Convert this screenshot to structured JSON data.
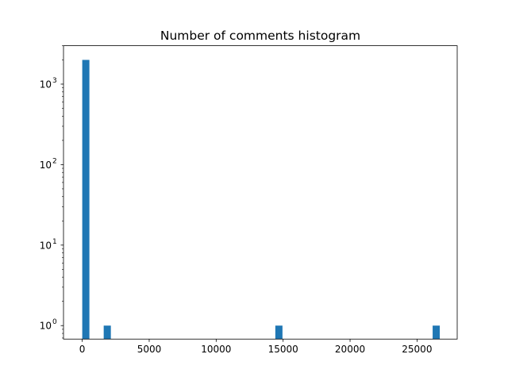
{
  "chart_data": {
    "type": "bar",
    "title": "Number of comments histogram",
    "xlabel": "",
    "ylabel": "",
    "x_scale": "linear",
    "y_scale": "log",
    "xlim": [
      -1400,
      28000
    ],
    "ylim": [
      0.68,
      3000
    ],
    "x_ticks": [
      0,
      5000,
      10000,
      15000,
      20000,
      25000
    ],
    "x_tick_labels": [
      "0",
      "5000",
      "10000",
      "15000",
      "20000",
      "25000"
    ],
    "y_ticks": [
      1,
      10,
      100,
      1000
    ],
    "y_tick_labels": [
      {
        "base": "10",
        "exp": "0"
      },
      {
        "base": "10",
        "exp": "1"
      },
      {
        "base": "10",
        "exp": "2"
      },
      {
        "base": "10",
        "exp": "3"
      }
    ],
    "grid": false,
    "bin_count": 50,
    "bin_range": [
      0,
      26700
    ],
    "bars": [
      {
        "bin_start": 0,
        "bin_end": 534,
        "count": 2000
      },
      {
        "bin_start": 1602,
        "bin_end": 2136,
        "count": 1
      },
      {
        "bin_start": 14418,
        "bin_end": 14952,
        "count": 1
      },
      {
        "bin_start": 26166,
        "bin_end": 26700,
        "count": 1
      }
    ],
    "bar_color": "#1f77b4"
  }
}
